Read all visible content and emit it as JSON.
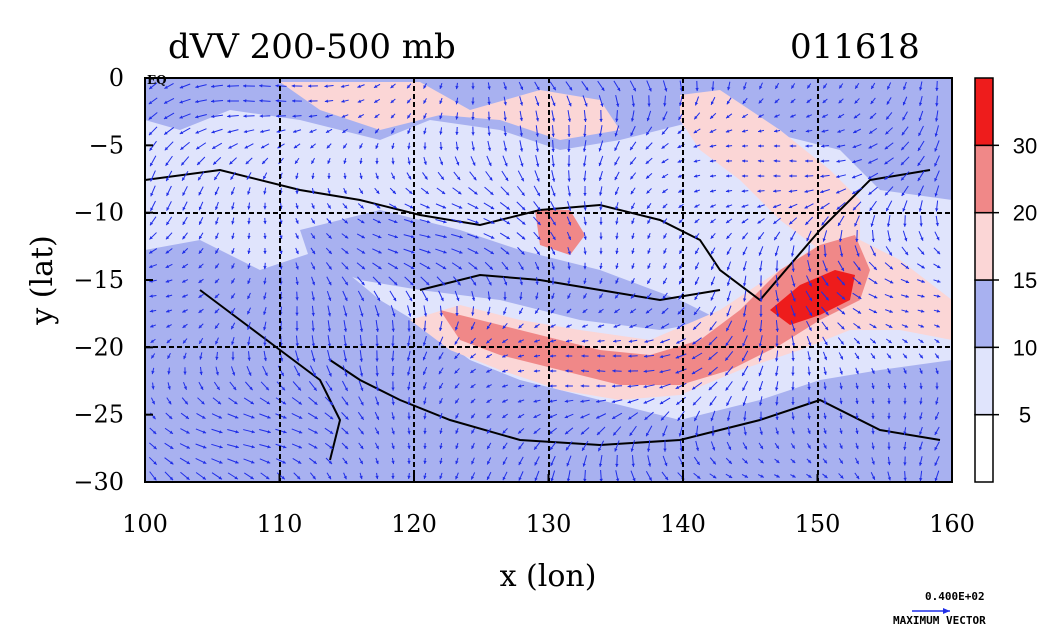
{
  "header": {
    "title": "dVV 200-500 mb",
    "date_code": "011618",
    "corner_label": "EQ"
  },
  "map": {
    "lon_range": [
      100,
      160
    ],
    "lat_range": [
      -30,
      0
    ],
    "lon_ticks": [
      "100",
      "110",
      "120",
      "130",
      "140",
      "150",
      "160"
    ],
    "lat_ticks": [
      "0",
      "−5",
      "−10",
      "−15",
      "−20",
      "−25",
      "−30"
    ],
    "xlabel": "x (lon)",
    "ylabel": "y (lat)",
    "grid": true,
    "projection": "lat-lon"
  },
  "colorbar": {
    "labels": [
      "5",
      "10",
      "15",
      "20",
      "30"
    ],
    "levels": [
      0,
      5,
      10,
      15,
      20,
      30,
      40
    ],
    "colors": [
      "#ffffff",
      "#e0e4fc",
      "#a8b1f0",
      "#fbd6d6",
      "#f08888",
      "#ee1c1c"
    ]
  },
  "vector_key": {
    "value": "0.400E+02",
    "label": "MAXIMUM VECTOR",
    "color": "#1f2ee8"
  }
}
